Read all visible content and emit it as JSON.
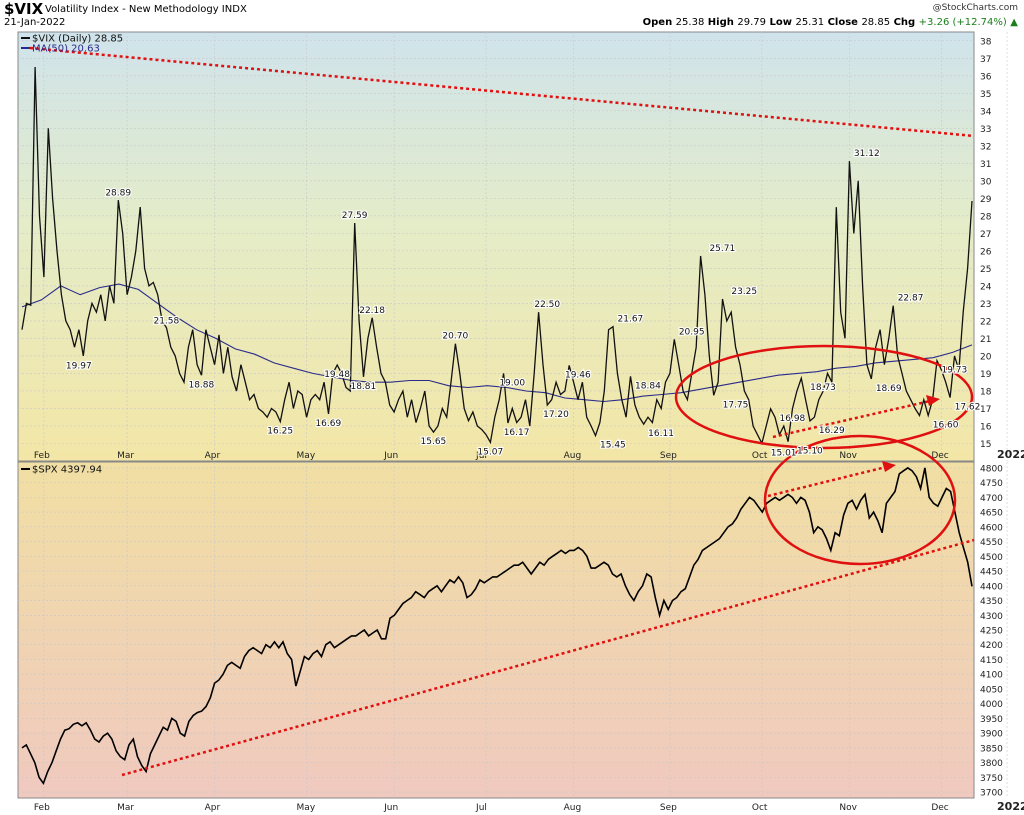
{
  "header": {
    "symbol": "$VIX",
    "name": "Volatility Index - New Methodology INDX",
    "date": "21-Jan-2022",
    "source": "@StockCharts.com",
    "open_label": "Open",
    "open": "25.38",
    "high_label": "High",
    "high": "29.79",
    "low_label": "Low",
    "low": "25.31",
    "close_label": "Close",
    "close": "28.85",
    "chg_label": "Chg",
    "chg": "+3.26 (+12.74%)"
  },
  "colors": {
    "vix_line": "#111111",
    "ma_line": "#2b2b8c",
    "annotation": "#e01010",
    "spx_line": "#000000"
  },
  "chart_data": [
    {
      "type": "line",
      "title": "$VIX (Daily)",
      "legend": [
        {
          "name": "$VIX (Daily) 28.85",
          "color": "#111111"
        },
        {
          "name": "MA(50) 20.63",
          "color": "#2b2b8c"
        }
      ],
      "legend_placement": "top-left",
      "x_ticks": [
        "Feb",
        "Mar",
        "Apr",
        "May",
        "Jun",
        "Jul",
        "Aug",
        "Sep",
        "Oct",
        "Nov",
        "Dec",
        "2022"
      ],
      "ylim": [
        14,
        38.5
      ],
      "y_ticks": [
        15,
        16,
        17,
        18,
        19,
        20,
        21,
        22,
        23,
        24,
        25,
        26,
        27,
        28,
        29,
        30,
        31,
        32,
        33,
        34,
        35,
        36,
        37,
        38
      ],
      "grid": true,
      "series": [
        {
          "name": "$VIX (Daily)",
          "values": [
            21.5,
            23.0,
            22.9,
            36.5,
            28.0,
            24.5,
            33.0,
            29.0,
            26.0,
            23.5,
            22.0,
            21.5,
            20.5,
            21.5,
            20.0,
            22.0,
            23.0,
            22.5,
            23.5,
            22.0,
            24.0,
            23.0,
            28.9,
            27.0,
            23.5,
            24.5,
            26.0,
            28.5,
            25.0,
            24.0,
            24.2,
            23.5,
            22.0,
            21.6,
            20.5,
            20.0,
            19.0,
            18.5,
            20.5,
            21.5,
            19.5,
            18.9,
            21.5,
            20.5,
            19.5,
            21.2,
            19.0,
            20.5,
            18.8,
            18.0,
            19.5,
            18.5,
            17.5,
            17.8,
            17.0,
            16.8,
            16.5,
            17.0,
            16.8,
            16.25,
            17.5,
            18.5,
            17.0,
            18.0,
            17.8,
            16.5,
            17.5,
            17.8,
            17.5,
            18.5,
            16.69,
            19.0,
            19.48,
            19.0,
            18.2,
            18.0,
            27.59,
            22.0,
            18.81,
            21.0,
            22.18,
            20.5,
            19.0,
            18.5,
            17.2,
            16.8,
            17.5,
            18.0,
            16.5,
            17.5,
            16.2,
            17.0,
            18.0,
            16.0,
            15.65,
            16.0,
            17.0,
            16.5,
            18.5,
            20.7,
            19.0,
            17.0,
            16.3,
            16.8,
            16.0,
            15.8,
            15.5,
            15.07,
            16.5,
            17.5,
            19.0,
            16.17,
            17.0,
            16.2,
            16.5,
            17.5,
            16.0,
            19.0,
            22.5,
            19.5,
            17.2,
            17.5,
            18.5,
            17.8,
            18.0,
            19.46,
            18.5,
            17.5,
            18.5,
            16.5,
            16.0,
            15.45,
            16.2,
            18.0,
            21.5,
            21.67,
            19.0,
            17.5,
            16.5,
            18.84,
            17.2,
            16.5,
            16.11,
            16.5,
            16.2,
            17.5,
            17.0,
            18.5,
            19.0,
            20.95,
            19.5,
            18.0,
            17.5,
            19.0,
            20.5,
            25.71,
            23.5,
            20.0,
            17.75,
            18.5,
            23.25,
            22.0,
            22.5,
            20.5,
            19.5,
            18.0,
            17.5,
            16.0,
            15.5,
            15.01,
            16.0,
            16.98,
            16.5,
            15.5,
            16.0,
            15.1,
            17.0,
            18.0,
            18.73,
            17.5,
            16.29,
            16.5,
            17.5,
            18.0,
            19.0,
            18.5,
            28.5,
            22.5,
            21.0,
            31.12,
            27.0,
            30.0,
            24.0,
            19.5,
            18.69,
            20.5,
            21.5,
            19.5,
            21.0,
            22.87,
            20.0,
            19.0,
            18.0,
            17.5,
            17.0,
            16.6,
            17.5,
            16.6,
            17.5,
            19.73,
            19.2,
            18.5,
            17.62,
            20.0,
            19.2,
            22.5,
            25.0,
            28.85
          ]
        },
        {
          "name": "MA(50)",
          "values": [
            22.8,
            23.2,
            24.0,
            23.5,
            23.9,
            24.1,
            23.8,
            23.0,
            22.2,
            21.5,
            21.0,
            20.4,
            20.1,
            19.6,
            19.3,
            19.0,
            18.8,
            18.6,
            18.5,
            18.5,
            18.6,
            18.6,
            18.3,
            18.2,
            18.3,
            18.2,
            18.0,
            17.9,
            17.6,
            17.5,
            17.4,
            17.5,
            17.7,
            17.8,
            17.9,
            18.1,
            18.3,
            18.5,
            18.7,
            18.9,
            19.0,
            19.1,
            19.3,
            19.4,
            19.6,
            19.7,
            19.8,
            19.9,
            20.2,
            20.63
          ]
        }
      ]
    },
    {
      "type": "line",
      "title": "$SPX",
      "legend": [
        {
          "name": "$SPX 4397.94",
          "color": "#000000"
        }
      ],
      "legend_placement": "top-left",
      "x_ticks": [
        "Feb",
        "Mar",
        "Apr",
        "May",
        "Jun",
        "Jul",
        "Aug",
        "Sep",
        "Oct",
        "Nov",
        "Dec",
        "2022"
      ],
      "ylim": [
        3680,
        4820
      ],
      "y_ticks": [
        3700,
        3750,
        3800,
        3850,
        3900,
        3950,
        4000,
        4050,
        4100,
        4150,
        4200,
        4250,
        4300,
        4350,
        4400,
        4450,
        4500,
        4550,
        4600,
        4650,
        4700,
        4750,
        4800
      ],
      "grid": true,
      "series": [
        {
          "name": "$SPX",
          "values": [
            3850,
            3860,
            3830,
            3800,
            3750,
            3730,
            3770,
            3800,
            3840,
            3880,
            3910,
            3915,
            3930,
            3935,
            3925,
            3935,
            3910,
            3880,
            3870,
            3890,
            3900,
            3880,
            3840,
            3820,
            3810,
            3860,
            3880,
            3820,
            3790,
            3770,
            3830,
            3860,
            3890,
            3920,
            3910,
            3950,
            3940,
            3900,
            3890,
            3940,
            3960,
            3970,
            3975,
            3990,
            4020,
            4070,
            4080,
            4100,
            4130,
            4140,
            4130,
            4120,
            4160,
            4180,
            4190,
            4180,
            4170,
            4200,
            4190,
            4210,
            4190,
            4210,
            4170,
            4150,
            4060,
            4110,
            4160,
            4150,
            4170,
            4180,
            4160,
            4200,
            4210,
            4190,
            4200,
            4210,
            4220,
            4230,
            4230,
            4240,
            4250,
            4230,
            4240,
            4250,
            4220,
            4220,
            4290,
            4300,
            4320,
            4340,
            4350,
            4360,
            4380,
            4370,
            4360,
            4380,
            4390,
            4400,
            4380,
            4400,
            4420,
            4410,
            4430,
            4410,
            4360,
            4370,
            4390,
            4420,
            4410,
            4420,
            4430,
            4430,
            4440,
            4450,
            4460,
            4470,
            4470,
            4480,
            4460,
            4440,
            4460,
            4480,
            4470,
            4490,
            4500,
            4510,
            4520,
            4510,
            4520,
            4520,
            4530,
            4520,
            4500,
            4460,
            4460,
            4470,
            4480,
            4470,
            4440,
            4430,
            4440,
            4400,
            4370,
            4350,
            4380,
            4400,
            4440,
            4430,
            4360,
            4300,
            4350,
            4320,
            4350,
            4360,
            4380,
            4390,
            4430,
            4470,
            4490,
            4520,
            4530,
            4540,
            4550,
            4560,
            4580,
            4600,
            4610,
            4630,
            4660,
            4680,
            4700,
            4690,
            4670,
            4650,
            4680,
            4690,
            4700,
            4690,
            4700,
            4710,
            4700,
            4680,
            4700,
            4690,
            4650,
            4580,
            4600,
            4590,
            4560,
            4520,
            4580,
            4570,
            4640,
            4680,
            4690,
            4660,
            4690,
            4710,
            4630,
            4650,
            4620,
            4580,
            4680,
            4700,
            4720,
            4780,
            4790,
            4800,
            4790,
            4770,
            4730,
            4800,
            4700,
            4680,
            4670,
            4700,
            4730,
            4720,
            4650,
            4580,
            4530,
            4480,
            4397.94
          ]
        }
      ]
    }
  ],
  "annotations": {
    "vix_labels": [
      {
        "text": "28.89",
        "x": 22,
        "y": 28.89
      },
      {
        "text": "19.97",
        "x": 13,
        "y": 19.97
      },
      {
        "text": "21.58",
        "x": 33,
        "y": 21.58
      },
      {
        "text": "18.88",
        "x": 41,
        "y": 18.88
      },
      {
        "text": "16.25",
        "x": 59,
        "y": 16.25
      },
      {
        "text": "27.59",
        "x": 76,
        "y": 27.59
      },
      {
        "text": "19.48",
        "x": 72,
        "y": 19.48
      },
      {
        "text": "16.69",
        "x": 70,
        "y": 16.69
      },
      {
        "text": "22.18",
        "x": 80,
        "y": 22.18
      },
      {
        "text": "18.81",
        "x": 78,
        "y": 18.81
      },
      {
        "text": "20.70",
        "x": 99,
        "y": 20.7
      },
      {
        "text": "15.65",
        "x": 94,
        "y": 15.65
      },
      {
        "text": "19.00",
        "x": 112,
        "y": 19.0
      },
      {
        "text": "15.07",
        "x": 107,
        "y": 15.07
      },
      {
        "text": "16.17",
        "x": 113,
        "y": 16.17
      },
      {
        "text": "22.50",
        "x": 120,
        "y": 22.5
      },
      {
        "text": "17.20",
        "x": 122,
        "y": 17.2
      },
      {
        "text": "19.46",
        "x": 127,
        "y": 19.46
      },
      {
        "text": "15.45",
        "x": 135,
        "y": 15.45
      },
      {
        "text": "21.67",
        "x": 139,
        "y": 21.67
      },
      {
        "text": "18.84",
        "x": 143,
        "y": 18.84
      },
      {
        "text": "16.11",
        "x": 146,
        "y": 16.11
      },
      {
        "text": "20.95",
        "x": 153,
        "y": 20.95
      },
      {
        "text": "25.71",
        "x": 160,
        "y": 25.71
      },
      {
        "text": "17.75",
        "x": 163,
        "y": 17.75
      },
      {
        "text": "23.25",
        "x": 165,
        "y": 23.25
      },
      {
        "text": "15.01",
        "x": 174,
        "y": 15.01
      },
      {
        "text": "16.98",
        "x": 176,
        "y": 16.98
      },
      {
        "text": "15.10",
        "x": 180,
        "y": 15.1
      },
      {
        "text": "18.73",
        "x": 183,
        "y": 18.73
      },
      {
        "text": "16.29",
        "x": 185,
        "y": 16.29
      },
      {
        "text": "31.12",
        "x": 193,
        "y": 31.12
      },
      {
        "text": "18.69",
        "x": 198,
        "y": 18.69
      },
      {
        "text": "22.87",
        "x": 203,
        "y": 22.87
      },
      {
        "text": "16.60",
        "x": 211,
        "y": 16.6
      },
      {
        "text": "19.73",
        "x": 213,
        "y": 19.73
      },
      {
        "text": "17.62",
        "x": 216,
        "y": 17.62
      }
    ]
  }
}
